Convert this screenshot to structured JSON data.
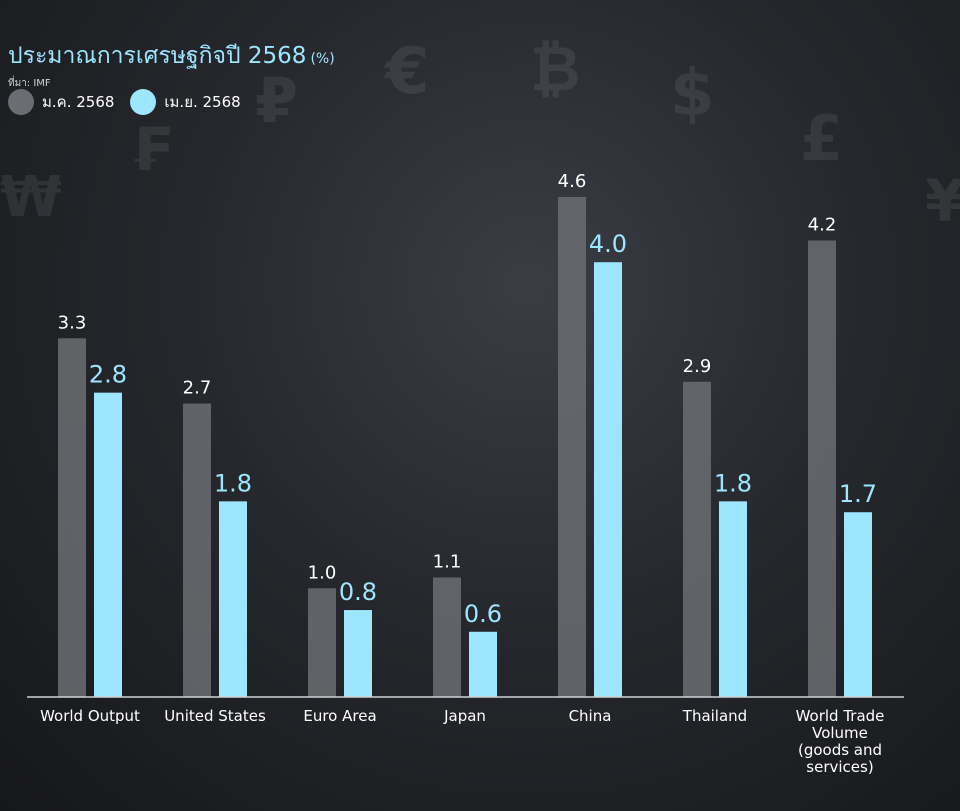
{
  "header": {
    "title": "ประมาณการเศรษฐกิจปี 2568",
    "unit": "(%)",
    "source": "ที่มา: IMF"
  },
  "colors": {
    "jan": "#6b6d72",
    "apr": "#9de6ff",
    "axis": "#d0d2d6"
  },
  "chart_data": {
    "type": "bar",
    "title": "ประมาณการเศรษฐกิจปี 2568 (%)",
    "xlabel": "",
    "ylabel": "",
    "ylim": [
      0,
      5
    ],
    "grid": false,
    "legend": "top-left",
    "categories": [
      [
        "World Output"
      ],
      [
        "United States"
      ],
      [
        "Euro Area"
      ],
      [
        "Japan"
      ],
      [
        "China"
      ],
      [
        "Thailand"
      ],
      [
        "World Trade",
        "Volume",
        "(goods and",
        "services)"
      ]
    ],
    "series": [
      {
        "name": "ม.ค. 2568",
        "values": [
          3.3,
          2.7,
          1.0,
          1.1,
          4.6,
          2.9,
          4.2
        ]
      },
      {
        "name": "เม.ย. 2568",
        "values": [
          2.8,
          1.8,
          0.8,
          0.6,
          4.0,
          1.8,
          1.7
        ]
      }
    ]
  }
}
